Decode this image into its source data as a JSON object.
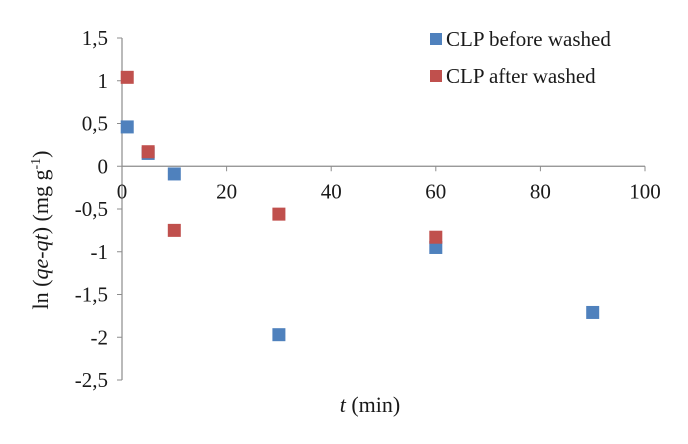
{
  "chart_data": {
    "type": "scatter",
    "title": "",
    "xlabel_italic": "t",
    "xlabel_rest": " (min)",
    "ylabel_parts": [
      "ln (",
      "qe-qt",
      ") (mg g",
      "-1",
      ")"
    ],
    "xlim": [
      0,
      100
    ],
    "ylim": [
      -2.5,
      1.5
    ],
    "x_ticks": [
      "0",
      "20",
      "40",
      "60",
      "80",
      "100"
    ],
    "x_tick_values": [
      0,
      20,
      40,
      60,
      80,
      100
    ],
    "y_ticks": [
      "1,5",
      "1",
      "0,5",
      "0",
      "-0,5",
      "-1",
      "-1,5",
      "-2",
      "-2,5"
    ],
    "y_tick_values": [
      1.5,
      1,
      0.5,
      0,
      -0.5,
      -1,
      -1.5,
      -2,
      -2.5
    ],
    "grid": false,
    "legend_position": "top-right",
    "series": [
      {
        "name": "CLP before washed",
        "color": "#4f81bd",
        "points": [
          {
            "x": 1,
            "y": 0.46
          },
          {
            "x": 5,
            "y": 0.15
          },
          {
            "x": 10,
            "y": -0.09
          },
          {
            "x": 30,
            "y": -1.97
          },
          {
            "x": 60,
            "y": -0.95
          },
          {
            "x": 90,
            "y": -1.71
          }
        ]
      },
      {
        "name": "CLP after washed",
        "color": "#c0504d",
        "points": [
          {
            "x": 1,
            "y": 1.04
          },
          {
            "x": 5,
            "y": 0.17
          },
          {
            "x": 10,
            "y": -0.75
          },
          {
            "x": 30,
            "y": -0.56
          },
          {
            "x": 60,
            "y": -0.83
          }
        ]
      }
    ]
  }
}
